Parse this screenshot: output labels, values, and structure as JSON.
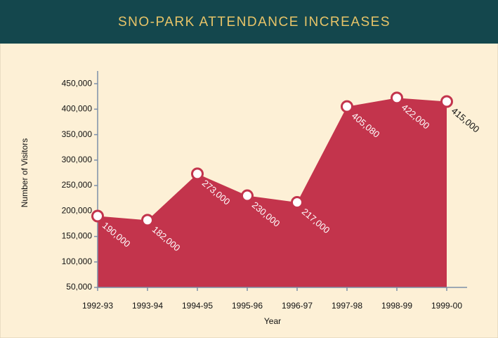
{
  "chart_data": {
    "type": "area",
    "title": "SNO-PARK ATTENDANCE INCREASES",
    "x_label": "Year",
    "y_label": "Number of Visitors",
    "categories": [
      "1992-93",
      "1993-94",
      "1994-95",
      "1995-96",
      "1996-97",
      "1997-98",
      "1998-99",
      "1999-00"
    ],
    "values": [
      190000,
      182000,
      273000,
      230000,
      217000,
      405080,
      422000,
      415000
    ],
    "value_labels": [
      "190,000",
      "182,000",
      "273,000",
      "230,000",
      "217,000",
      "405,080",
      "422,000",
      "415,000"
    ],
    "color": "#c3344c",
    "ylim": [
      50000,
      475000
    ],
    "yticks": [
      {
        "value": 50000,
        "label": "50,000"
      },
      {
        "value": 100000,
        "label": "100,000"
      },
      {
        "value": 150000,
        "label": "150,000"
      },
      {
        "value": 200000,
        "label": "200,000"
      },
      {
        "value": 250000,
        "label": "250,000"
      },
      {
        "value": 300000,
        "label": "300,000"
      },
      {
        "value": 350000,
        "label": "350,000"
      },
      {
        "value": 400000,
        "label": "400,000"
      },
      {
        "value": 450000,
        "label": "450,000"
      }
    ]
  }
}
